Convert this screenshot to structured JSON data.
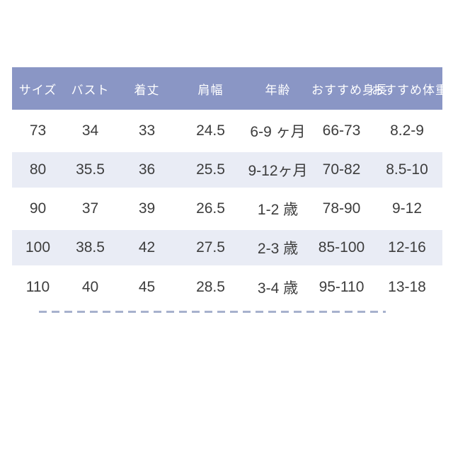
{
  "size_chart": {
    "columns": [
      {
        "key": "size",
        "label": "サイズ"
      },
      {
        "key": "bust",
        "label": "バスト"
      },
      {
        "key": "length",
        "label": "着丈"
      },
      {
        "key": "shoulder-width",
        "label": "肩幅"
      },
      {
        "key": "age",
        "label": "年齢"
      },
      {
        "key": "recommended-height",
        "label": "おすすめ身長"
      },
      {
        "key": "recommended-weight",
        "label": "おすすめ体重"
      }
    ],
    "rows": [
      [
        "73",
        "34",
        "33",
        "24.5",
        "6-9 ヶ月",
        "66-73",
        "8.2-9"
      ],
      [
        "80",
        "35.5",
        "36",
        "25.5",
        "9-12ヶ月",
        "70-82",
        "8.5-10"
      ],
      [
        "90",
        "37",
        "39",
        "26.5",
        "1-2 歳",
        "78-90",
        "9-12"
      ],
      [
        "100",
        "38.5",
        "42",
        "27.5",
        "2-3 歳",
        "85-100",
        "12-16"
      ],
      [
        "110",
        "40",
        "45",
        "28.5",
        "3-4 歳",
        "95-110",
        "13-18"
      ]
    ],
    "colors": {
      "header_bg": "#8a96c5",
      "header_text": "#ffffff",
      "band_bg": "#e9ecf5",
      "row_text": "#3d3d3d",
      "dash_color": "#a7b1cd",
      "page_bg": "#ffffff"
    }
  }
}
